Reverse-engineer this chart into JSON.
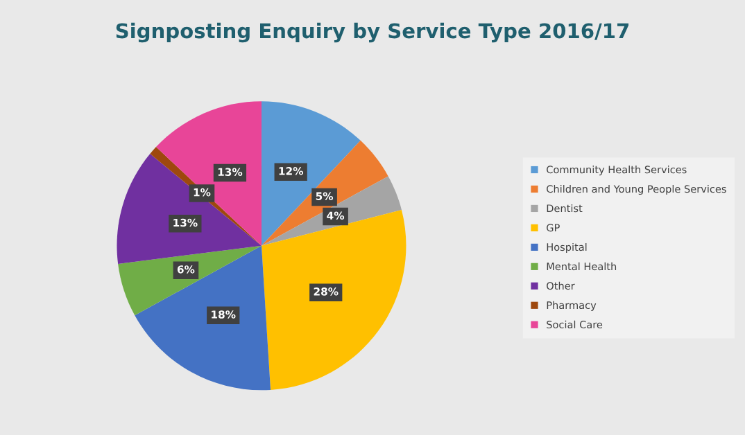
{
  "chart_data": {
    "type": "pie",
    "title": "Signposting Enquiry by Service Type 2016/17",
    "categories": [
      "Community Health Services",
      "Children and Young People Services",
      "Dentist",
      "GP",
      "Hospital",
      "Mental Health",
      "Other",
      "Pharmacy",
      "Social Care"
    ],
    "values": [
      12,
      5,
      4,
      28,
      18,
      6,
      13,
      1,
      13
    ],
    "value_labels": [
      "12%",
      "5%",
      "4%",
      "28%",
      "18%",
      "6%",
      "13%",
      "1%",
      "13%"
    ],
    "colors": [
      "#5b9bd5",
      "#ed7d31",
      "#a5a5a5",
      "#ffc000",
      "#4472c4",
      "#70ad47",
      "#7030a0",
      "#9e480e",
      "#e84598"
    ],
    "legend": "right"
  }
}
